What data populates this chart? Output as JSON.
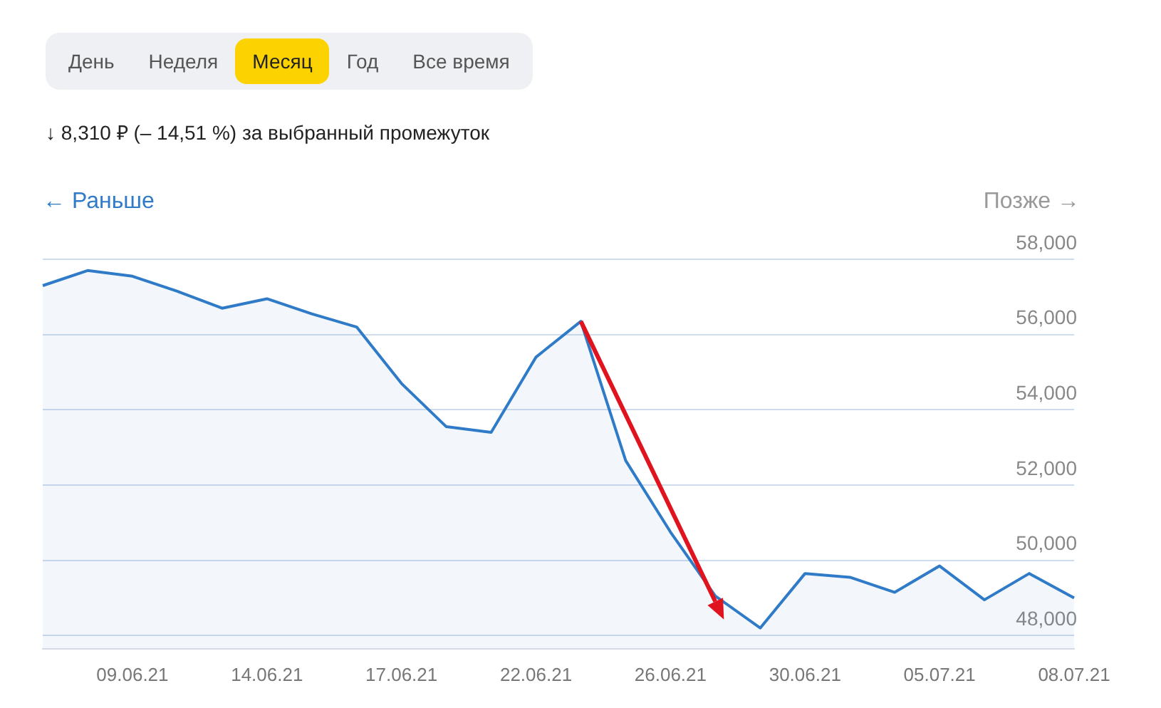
{
  "chart_data": {
    "type": "area",
    "subtitle": "↓ 8,310 ₽ (– 14,51 %) за выбранный промежуток",
    "annotations": [
      "День",
      "Неделя",
      "Месяц",
      "Год",
      "Все время",
      "← Раньше",
      "Позже →"
    ],
    "categories": [
      null,
      null,
      "09.06.21",
      null,
      null,
      "14.06.21",
      null,
      null,
      "17.06.21",
      null,
      null,
      "22.06.21",
      null,
      null,
      "26.06.21",
      null,
      null,
      "30.06.21",
      null,
      null,
      "05.07.21",
      null,
      null,
      "08.07.21"
    ],
    "series": [
      {
        "color": "#2f7bc8",
        "values": [
          57300,
          57700,
          57550,
          57150,
          56700,
          56950,
          56550,
          56200,
          54700,
          53550,
          53400,
          55400,
          56350,
          52650,
          50750,
          49050,
          48200,
          49650,
          49550,
          49150,
          49850,
          48950,
          49650,
          49000
        ]
      }
    ],
    "ylim": [
      47650,
      58000
    ],
    "yticks": [
      {
        "value": 48000,
        "label": "48,000"
      },
      {
        "value": 50000,
        "label": "50,000"
      },
      {
        "value": 52000,
        "label": "52,000"
      },
      {
        "value": 54000,
        "label": "54,000"
      },
      {
        "value": 56000,
        "label": "56,000"
      },
      {
        "value": 58000,
        "label": "58,000"
      }
    ],
    "grid": "y",
    "legend": false,
    "marker": "none",
    "line_style": "solid"
  }
}
